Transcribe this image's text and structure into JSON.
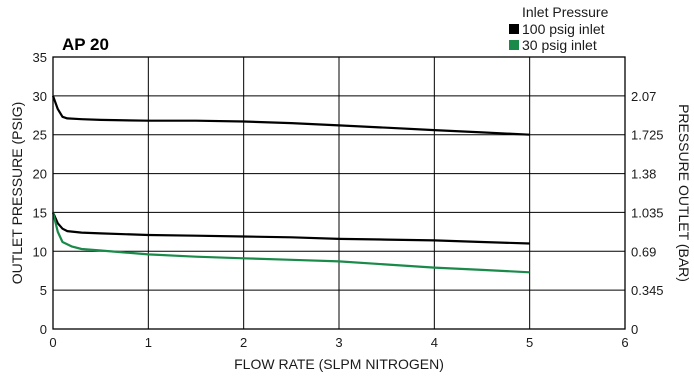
{
  "chart_data": {
    "type": "line",
    "title": "AP 20",
    "xlabel": "FLOW RATE (SLPM NITROGEN)",
    "ylabel": "OUTLET PRESSURE (PSIG)",
    "y2label": "PRESSURE OUTLET (BAR)",
    "xlim": [
      0,
      6
    ],
    "ylim": [
      0,
      35
    ],
    "x_ticks": [
      "0",
      "1",
      "2",
      "3",
      "4",
      "5",
      "6"
    ],
    "y_ticks": [
      "0",
      "5",
      "10",
      "15",
      "20",
      "25",
      "30",
      "35"
    ],
    "y2_ticks": [
      "0",
      "0.345",
      "0.69",
      "1.035",
      "1.38",
      "1.725",
      "2.07"
    ],
    "grid": true,
    "legend": {
      "title": "Inlet Pressure",
      "position": "top-right",
      "entries": [
        {
          "label": "100 psig inlet",
          "color": "#000000"
        },
        {
          "label": "30 psig inlet",
          "color": "#1a8a4a"
        }
      ]
    },
    "series": [
      {
        "legend_ref": 0,
        "color": "#000000",
        "x": [
          0,
          0.05,
          0.1,
          0.15,
          0.3,
          0.5,
          1,
          1.5,
          2,
          2.5,
          3,
          3.5,
          4,
          4.5,
          5
        ],
        "y": [
          30,
          28.3,
          27.3,
          27.1,
          27,
          26.9,
          26.8,
          26.8,
          26.7,
          26.5,
          26.2,
          25.9,
          25.6,
          25.3,
          25
        ]
      },
      {
        "legend_ref": 0,
        "color": "#000000",
        "x": [
          0,
          0.05,
          0.1,
          0.15,
          0.3,
          0.5,
          1,
          1.5,
          2,
          2.5,
          3,
          3.5,
          4,
          4.5,
          5
        ],
        "y": [
          15,
          13.6,
          12.9,
          12.6,
          12.4,
          12.3,
          12.1,
          12,
          11.9,
          11.8,
          11.6,
          11.5,
          11.4,
          11.2,
          11
        ]
      },
      {
        "legend_ref": 1,
        "color": "#1a8a4a",
        "x": [
          0,
          0.05,
          0.1,
          0.2,
          0.3,
          0.5,
          1,
          1.5,
          2,
          2.5,
          3,
          3.5,
          4,
          4.5,
          5
        ],
        "y": [
          15,
          12.5,
          11.2,
          10.6,
          10.3,
          10.1,
          9.6,
          9.3,
          9.1,
          8.9,
          8.7,
          8.3,
          7.9,
          7.6,
          7.3
        ]
      }
    ]
  }
}
